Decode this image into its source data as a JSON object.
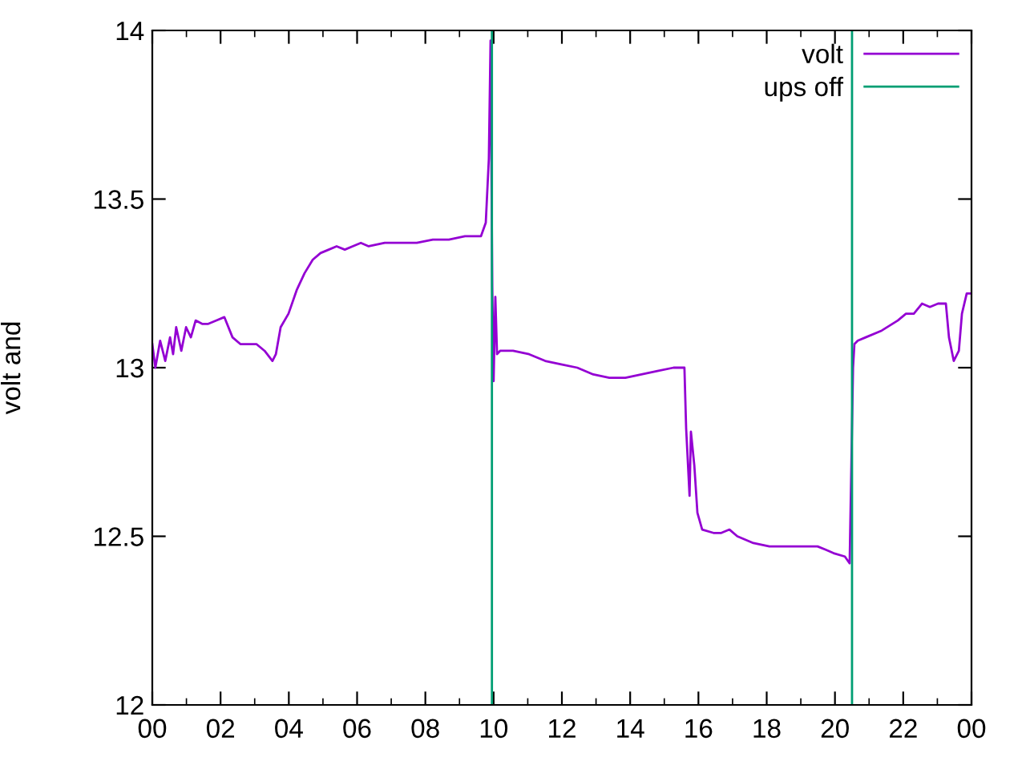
{
  "chart_data": {
    "type": "line",
    "ylabel": "volt and",
    "xlim": [
      0,
      24
    ],
    "xticks": [
      {
        "value": 0,
        "label": "00"
      },
      {
        "value": 2,
        "label": "02"
      },
      {
        "value": 4,
        "label": "04"
      },
      {
        "value": 6,
        "label": "06"
      },
      {
        "value": 8,
        "label": "08"
      },
      {
        "value": 10,
        "label": "10"
      },
      {
        "value": 12,
        "label": "12"
      },
      {
        "value": 14,
        "label": "14"
      },
      {
        "value": 16,
        "label": "16"
      },
      {
        "value": 18,
        "label": "18"
      },
      {
        "value": 20,
        "label": "20"
      },
      {
        "value": 22,
        "label": "22"
      },
      {
        "value": 24,
        "label": "00"
      }
    ],
    "ylim": [
      12,
      14
    ],
    "yticks": [
      12,
      12.5,
      13,
      13.5,
      14
    ],
    "grid": false,
    "legend": "top right",
    "marker": "none",
    "line_style": "solid",
    "series": [
      {
        "name": "volt",
        "color": "#9400d3",
        "x": [
          0,
          0.09,
          0.23,
          0.38,
          0.52,
          0.61,
          0.7,
          0.85,
          0.99,
          1.13,
          1.27,
          1.46,
          1.64,
          1.88,
          2.11,
          2.35,
          2.58,
          2.82,
          3.05,
          3.29,
          3.52,
          3.62,
          3.76,
          3.99,
          4.23,
          4.46,
          4.7,
          4.93,
          5.17,
          5.4,
          5.64,
          5.87,
          6.11,
          6.34,
          6.81,
          7.28,
          7.75,
          8.22,
          8.69,
          9.16,
          9.63,
          9.77,
          9.86,
          9.91,
          9.96,
          10.0,
          10.05,
          10.1,
          10.19,
          10.57,
          11.04,
          11.51,
          11.98,
          12.45,
          12.92,
          13.39,
          13.86,
          14.33,
          14.8,
          15.27,
          15.59,
          15.64,
          15.74,
          15.78,
          15.88,
          15.97,
          16.11,
          16.44,
          16.67,
          16.91,
          17.14,
          17.61,
          18.08,
          18.55,
          19.02,
          19.49,
          19.73,
          19.96,
          20.29,
          20.43,
          20.48,
          20.53,
          20.57,
          20.67,
          20.9,
          21.37,
          21.84,
          22.08,
          22.31,
          22.55,
          22.78,
          23.02,
          23.25,
          23.34,
          23.48,
          23.63,
          23.72,
          23.86,
          24.0
        ],
        "values": [
          13.07,
          13.0,
          13.08,
          13.02,
          13.09,
          13.04,
          13.12,
          13.05,
          13.12,
          13.09,
          13.14,
          13.13,
          13.13,
          13.14,
          13.15,
          13.09,
          13.07,
          13.07,
          13.07,
          13.05,
          13.02,
          13.04,
          13.12,
          13.16,
          13.23,
          13.28,
          13.32,
          13.34,
          13.35,
          13.36,
          13.35,
          13.36,
          13.37,
          13.36,
          13.37,
          13.37,
          13.37,
          13.38,
          13.38,
          13.39,
          13.39,
          13.43,
          13.62,
          13.97,
          13.24,
          12.96,
          13.21,
          13.04,
          13.05,
          13.05,
          13.04,
          13.02,
          13.01,
          13.0,
          12.98,
          12.97,
          12.97,
          12.98,
          12.99,
          13.0,
          13.0,
          12.82,
          12.62,
          12.81,
          12.71,
          12.57,
          12.52,
          12.51,
          12.51,
          12.52,
          12.5,
          12.48,
          12.47,
          12.47,
          12.47,
          12.47,
          12.46,
          12.45,
          12.44,
          12.42,
          12.71,
          13.0,
          13.07,
          13.08,
          13.09,
          13.11,
          13.14,
          13.16,
          13.16,
          13.19,
          13.18,
          13.19,
          13.19,
          13.09,
          13.02,
          13.05,
          13.16,
          13.22,
          13.22
        ]
      },
      {
        "name": "ups off",
        "color": "#009e73",
        "x": [
          9.95,
          9.95,
          null,
          20.5,
          20.5
        ],
        "values": [
          12,
          14,
          null,
          12,
          14
        ]
      }
    ]
  }
}
